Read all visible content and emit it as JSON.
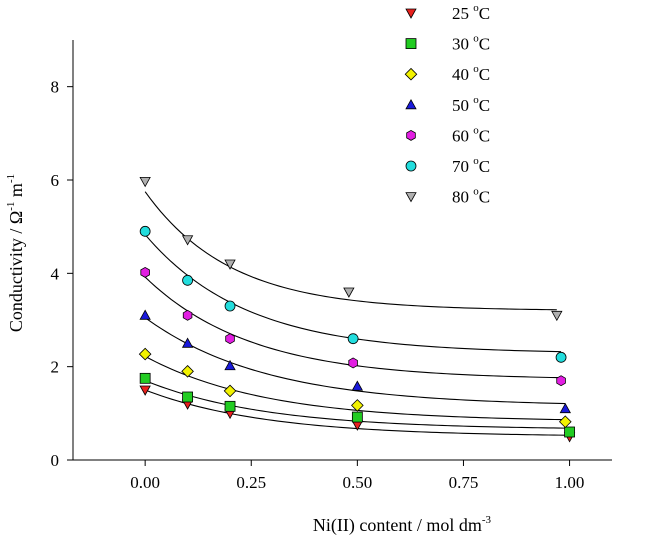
{
  "chart_data": {
    "type": "scatter",
    "xlabel": "Ni(II) content / mol dm",
    "xlabel_sup": "-3",
    "ylabel_parts": {
      "pre": "Conductivity / ",
      "omega": "Ω",
      "omega_sup": "-1",
      "mid": " m",
      "m_sup": "-1"
    },
    "xlim": [
      -0.17,
      1.1
    ],
    "ylim": [
      0,
      9
    ],
    "xticks": [
      0.0,
      0.25,
      0.5,
      0.75,
      1.0
    ],
    "xtick_labels": [
      "0.00",
      "0.25",
      "0.50",
      "0.75",
      "1.00"
    ],
    "yticks": [
      0,
      2,
      4,
      6,
      8
    ],
    "ytick_labels": [
      "0",
      "2",
      "4",
      "6",
      "8"
    ],
    "grid": false,
    "legend_position": "top-right",
    "series": [
      {
        "name": "25 °C",
        "temp": "25",
        "unit": "C",
        "marker": "triangle-down",
        "color": "#e8211d",
        "x": [
          0.0,
          0.1,
          0.2,
          0.5,
          1.0
        ],
        "y": [
          1.5,
          1.2,
          1.0,
          0.75,
          0.5
        ],
        "fit": {
          "a": 0.5,
          "b": 1.0,
          "k": 3.5
        }
      },
      {
        "name": "30 °C",
        "temp": "30",
        "unit": "C",
        "marker": "square",
        "color": "#22cc22",
        "x": [
          0.0,
          0.1,
          0.2,
          0.5,
          1.0
        ],
        "y": [
          1.75,
          1.35,
          1.15,
          0.92,
          0.6
        ],
        "fit": {
          "a": 0.65,
          "b": 1.05,
          "k": 3.5
        }
      },
      {
        "name": "40 °C",
        "temp": "40",
        "unit": "C",
        "marker": "diamond",
        "color": "#f2f200",
        "x": [
          0.0,
          0.1,
          0.2,
          0.5,
          0.99
        ],
        "y": [
          2.27,
          1.9,
          1.48,
          1.17,
          0.82
        ],
        "fit": {
          "a": 0.82,
          "b": 1.4,
          "k": 3.5
        }
      },
      {
        "name": "50 °C",
        "temp": "50",
        "unit": "C",
        "marker": "triangle-up",
        "color": "#1a1adc",
        "x": [
          0.0,
          0.1,
          0.2,
          0.5,
          0.99
        ],
        "y": [
          3.1,
          2.5,
          2.02,
          1.58,
          1.1
        ],
        "fit": {
          "a": 1.15,
          "b": 1.9,
          "k": 3.5
        }
      },
      {
        "name": "60 °C",
        "temp": "60",
        "unit": "C",
        "marker": "hexagon",
        "color": "#e21ee2",
        "x": [
          0.0,
          0.1,
          0.2,
          0.49,
          0.98
        ],
        "y": [
          4.02,
          3.1,
          2.6,
          2.08,
          1.7
        ],
        "fit": {
          "a": 1.72,
          "b": 2.2,
          "k": 4.0
        }
      },
      {
        "name": "70 °C",
        "temp": "70",
        "unit": "C",
        "marker": "circle",
        "color": "#22dddd",
        "x": [
          0.0,
          0.1,
          0.2,
          0.49,
          0.98
        ],
        "y": [
          4.9,
          3.85,
          3.3,
          2.6,
          2.2
        ],
        "fit": {
          "a": 2.28,
          "b": 2.55,
          "k": 4.2
        }
      },
      {
        "name": "80 °C",
        "temp": "80",
        "unit": "C",
        "marker": "triangle-down",
        "color": "#b0b0b0",
        "x": [
          0.0,
          0.1,
          0.2,
          0.48,
          0.97
        ],
        "y": [
          5.97,
          4.72,
          4.2,
          3.6,
          3.1
        ],
        "fit": {
          "a": 3.2,
          "b": 2.55,
          "k": 5.0
        }
      }
    ]
  }
}
